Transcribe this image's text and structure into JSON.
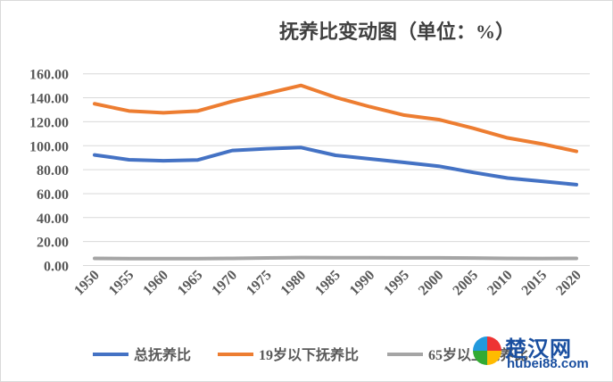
{
  "chart_data": {
    "type": "line",
    "title": "抚养比变动图（单位：%）",
    "xlabel": "",
    "ylabel": "",
    "x": [
      1950,
      1955,
      1960,
      1965,
      1970,
      1975,
      1980,
      1985,
      1990,
      1995,
      2000,
      2005,
      2010,
      2015,
      2020
    ],
    "x_tick_labels": [
      "1950",
      "1955",
      "1960",
      "1965",
      "1970",
      "1975",
      "1980",
      "1985",
      "1990",
      "1995",
      "2000",
      "2005",
      "2010",
      "2015",
      "2020"
    ],
    "ylim": [
      0,
      160
    ],
    "y_tick_labels": [
      "0.00",
      "20.00",
      "40.00",
      "60.00",
      "80.00",
      "100.00",
      "120.00",
      "140.00",
      "160.00"
    ],
    "y_ticks": [
      0,
      20,
      40,
      60,
      80,
      100,
      120,
      140,
      160
    ],
    "grid": true,
    "legend_position": "bottom",
    "series": [
      {
        "name": "总抚养比",
        "color": "#4472c4",
        "values": [
          92.3,
          88.3,
          87.4,
          88.1,
          96.0,
          97.5,
          98.5,
          92.0,
          89.0,
          86.0,
          82.9,
          77.7,
          73.0,
          70.3,
          67.5
        ]
      },
      {
        "name": "19岁以下抚养比",
        "color": "#ed7d31",
        "values": [
          135.0,
          129.0,
          127.5,
          129.0,
          137.0,
          143.6,
          150.3,
          140.4,
          132.5,
          125.5,
          121.8,
          114.6,
          106.5,
          101.5,
          95.3
        ]
      },
      {
        "name": "65岁以上抚养比",
        "color": "#a5a5a5",
        "values": [
          6.0,
          5.8,
          5.8,
          5.8,
          6.0,
          6.3,
          6.6,
          6.5,
          6.5,
          6.4,
          6.4,
          6.2,
          6.0,
          5.9,
          6.0
        ]
      }
    ]
  },
  "watermark": {
    "name": "楚汉网",
    "url": "hubei88.com"
  }
}
